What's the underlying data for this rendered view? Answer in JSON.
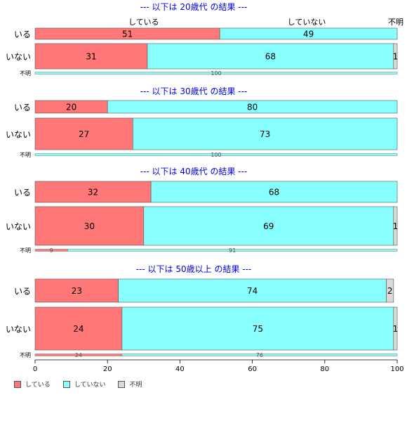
{
  "chart_data": {
    "type": "bar",
    "orientation": "horizontal",
    "stacked": true,
    "series": [
      {
        "name": "している",
        "color": "#FF7777"
      },
      {
        "name": "していない",
        "color": "#88FFFF"
      },
      {
        "name": "不明",
        "color": "#D9D9D9"
      }
    ],
    "column_headers": [
      "している",
      "していない",
      "不明"
    ],
    "groups": [
      {
        "title": "--- 以下は 20歳代 の結果 ---",
        "rows": [
          {
            "label": "いる",
            "values": [
              51,
              49,
              0
            ]
          },
          {
            "label": "いない",
            "values": [
              31,
              68,
              1
            ]
          }
        ],
        "summary": {
          "label": "不明",
          "values": [
            0,
            100,
            0
          ]
        }
      },
      {
        "title": "--- 以下は 30歳代 の結果 ---",
        "rows": [
          {
            "label": "いる",
            "values": [
              20,
              80,
              0
            ]
          },
          {
            "label": "いない",
            "values": [
              27,
              73,
              0
            ]
          }
        ],
        "summary": {
          "label": "不明",
          "values": [
            0,
            100,
            0
          ]
        }
      },
      {
        "title": "--- 以下は 40歳代 の結果 ---",
        "rows": [
          {
            "label": "いる",
            "values": [
              32,
              68,
              0
            ]
          },
          {
            "label": "いない",
            "values": [
              30,
              69,
              1
            ]
          }
        ],
        "summary": {
          "label": "不明",
          "values": [
            9,
            91,
            0
          ]
        }
      },
      {
        "title": "--- 以下は 50歳以上 の結果 ---",
        "rows": [
          {
            "label": "いる",
            "values": [
              23,
              74,
              2
            ]
          },
          {
            "label": "いない",
            "values": [
              24,
              75,
              1
            ]
          }
        ],
        "summary": {
          "label": "不明",
          "values": [
            24,
            76,
            0
          ]
        }
      }
    ],
    "xlim": [
      0,
      100
    ],
    "xticks": [
      0,
      20,
      40,
      60,
      80,
      100
    ],
    "title_color": "#0000EE",
    "legend_position": "bottom-left",
    "grid": false
  }
}
